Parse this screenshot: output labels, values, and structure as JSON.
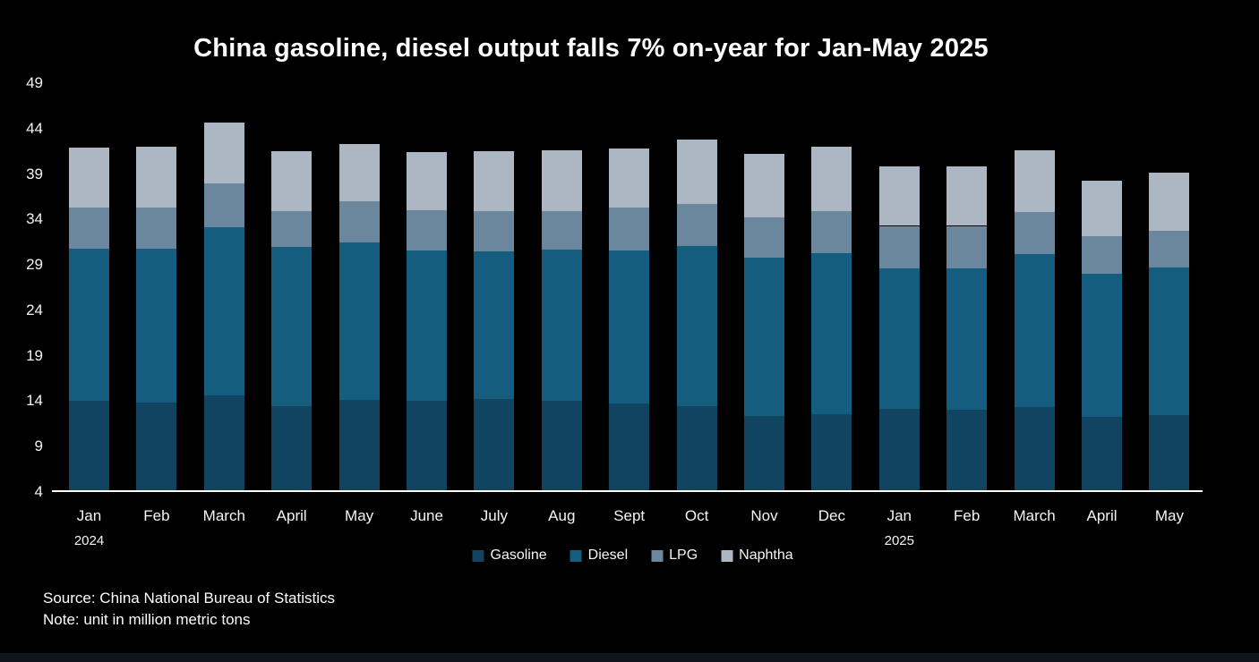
{
  "title": "China gasoline, diesel output falls 7% on-year for Jan-May 2025",
  "footer": {
    "source_line": "Source: China National Bureau of Statistics",
    "note_line": "Note: unit in million metric tons"
  },
  "colors": {
    "background": "#000000",
    "text": "#ffffff",
    "axis_line": "#ffffff",
    "gasoline": "#104461",
    "diesel": "#155D7F",
    "lpg": "#6B879D",
    "naphtha": "#ACB7C3",
    "footer_strip": "#0d151d"
  },
  "chart_data": {
    "type": "bar",
    "stacked": true,
    "title": "China gasoline, diesel output falls 7% on-year for Jan-May 2025",
    "unit": "million metric tons",
    "categories": [
      "Jan",
      "Feb",
      "March",
      "April",
      "May",
      "June",
      "July",
      "Aug",
      "Sept",
      "Oct",
      "Nov",
      "Dec",
      "Jan",
      "Feb",
      "March",
      "April",
      "May"
    ],
    "year_markers": [
      {
        "index": 0,
        "label": "2024"
      },
      {
        "index": 12,
        "label": "2025"
      }
    ],
    "series": [
      {
        "name": "Gasoline",
        "color": "#104461",
        "values": [
          13.8,
          13.7,
          14.4,
          13.3,
          13.9,
          13.8,
          14.0,
          13.8,
          13.6,
          13.3,
          12.2,
          12.4,
          13.0,
          12.9,
          13.2,
          12.1,
          12.3
        ]
      },
      {
        "name": "Diesel",
        "color": "#155D7F",
        "values": [
          16.8,
          16.9,
          18.6,
          17.5,
          17.4,
          16.6,
          16.3,
          16.7,
          16.8,
          17.6,
          17.4,
          17.7,
          15.4,
          15.5,
          16.8,
          15.7,
          16.2
        ]
      },
      {
        "name": "LPG",
        "color": "#6B879D",
        "values": [
          4.5,
          4.5,
          4.8,
          3.9,
          4.5,
          4.4,
          4.4,
          4.2,
          4.7,
          4.6,
          4.4,
          4.6,
          4.7,
          4.7,
          4.6,
          4.2,
          4.1
        ]
      },
      {
        "name": "Naphtha",
        "color": "#ACB7C3",
        "values": [
          6.6,
          6.7,
          6.7,
          6.6,
          6.3,
          6.4,
          6.6,
          6.7,
          6.5,
          7.1,
          7.0,
          7.1,
          6.5,
          6.5,
          6.8,
          6.1,
          6.4
        ]
      }
    ],
    "totals": [
      41.7,
      41.8,
      44.5,
      41.3,
      42.1,
      41.2,
      41.3,
      41.4,
      41.6,
      42.6,
      41.0,
      41.8,
      39.6,
      39.6,
      41.4,
      38.1,
      39.0
    ],
    "y_ticks": [
      4,
      9,
      14,
      19,
      24,
      29,
      34,
      39,
      44,
      49
    ],
    "ylim": [
      4,
      49
    ],
    "xlabel": "",
    "ylabel": "",
    "grid": false,
    "legend_position": "bottom"
  }
}
